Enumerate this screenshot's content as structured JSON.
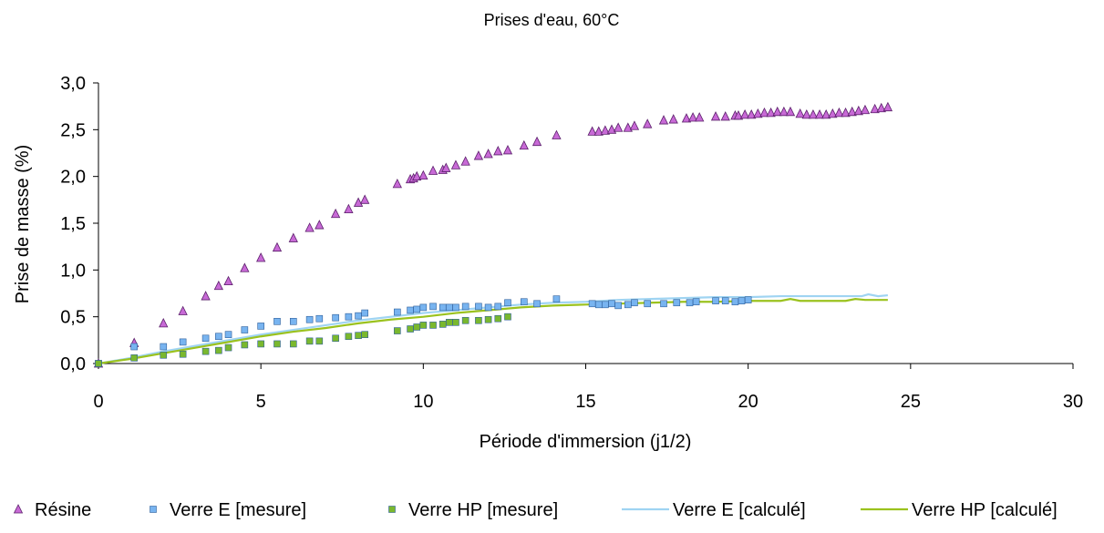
{
  "chart_data": {
    "type": "scatter",
    "title": "Prises d'eau, 60°C",
    "xlabel": "Période d'immersion (j1/2)",
    "ylabel": "Prise de masse (%)",
    "xlim": [
      0,
      30
    ],
    "ylim": [
      0,
      3.0
    ],
    "x_ticks": [
      0,
      5,
      10,
      15,
      20,
      25,
      30
    ],
    "x_tick_labels": [
      "0",
      "5",
      "10",
      "15",
      "20",
      "25",
      "30"
    ],
    "y_ticks": [
      0,
      0.5,
      1.0,
      1.5,
      2.0,
      2.5,
      3.0
    ],
    "y_tick_labels": [
      "0,0",
      "0,5",
      "1,0",
      "1,5",
      "2,0",
      "2,5",
      "3,0"
    ],
    "grid": false,
    "legend_position": "bottom",
    "series": [
      {
        "name": "Résine",
        "kind": "marker",
        "marker": "triangle",
        "color": "#c86ad6",
        "x": [
          0,
          1.1,
          2.0,
          2.6,
          3.3,
          3.7,
          4.0,
          4.5,
          5.0,
          5.5,
          6.0,
          6.5,
          6.8,
          7.3,
          7.7,
          8.0,
          8.2,
          9.2,
          9.6,
          9.7,
          9.8,
          10.0,
          10.3,
          10.6,
          10.7,
          11.0,
          11.3,
          11.7,
          12.0,
          12.3,
          12.6,
          13.1,
          13.5,
          14.1,
          15.2,
          15.4,
          15.6,
          15.8,
          16.0,
          16.3,
          16.5,
          16.9,
          17.4,
          17.7,
          18.1,
          18.3,
          18.5,
          19.0,
          19.3,
          19.6,
          19.7,
          19.9,
          20.1,
          20.3,
          20.5,
          20.7,
          20.9,
          21.1,
          21.3,
          21.6,
          21.8,
          22.0,
          22.2,
          22.4,
          22.6,
          22.8,
          23.0,
          23.2,
          23.4,
          23.6,
          23.9,
          24.1,
          24.3
        ],
        "y": [
          0,
          0.22,
          0.43,
          0.56,
          0.72,
          0.83,
          0.88,
          1.02,
          1.13,
          1.24,
          1.34,
          1.45,
          1.48,
          1.6,
          1.65,
          1.72,
          1.75,
          1.92,
          1.97,
          1.98,
          2.0,
          2.01,
          2.06,
          2.07,
          2.09,
          2.12,
          2.16,
          2.22,
          2.24,
          2.27,
          2.28,
          2.33,
          2.37,
          2.44,
          2.48,
          2.48,
          2.49,
          2.5,
          2.52,
          2.52,
          2.54,
          2.56,
          2.6,
          2.61,
          2.62,
          2.63,
          2.63,
          2.64,
          2.64,
          2.65,
          2.65,
          2.66,
          2.66,
          2.67,
          2.68,
          2.68,
          2.69,
          2.69,
          2.69,
          2.67,
          2.66,
          2.66,
          2.66,
          2.66,
          2.67,
          2.68,
          2.68,
          2.69,
          2.7,
          2.71,
          2.72,
          2.73,
          2.74
        ]
      },
      {
        "name": "Verre E [mesure]",
        "kind": "marker",
        "marker": "square",
        "color": "#78b4f0",
        "x": [
          0,
          1.1,
          2.0,
          2.6,
          3.3,
          3.7,
          4.0,
          4.5,
          5.0,
          5.5,
          6.0,
          6.5,
          6.8,
          7.3,
          7.7,
          8.0,
          8.2,
          9.2,
          9.6,
          9.8,
          10.0,
          10.3,
          10.6,
          10.8,
          11.0,
          11.3,
          11.7,
          12.0,
          12.3,
          12.6,
          13.1,
          13.5,
          14.1,
          15.2,
          15.4,
          15.6,
          15.8,
          16.0,
          16.3,
          16.5,
          16.9,
          17.4,
          17.8,
          18.2,
          18.4,
          19.0,
          19.3,
          19.6,
          19.8,
          20.0
        ],
        "y": [
          0,
          0.18,
          0.18,
          0.23,
          0.27,
          0.29,
          0.31,
          0.36,
          0.4,
          0.45,
          0.45,
          0.47,
          0.48,
          0.49,
          0.5,
          0.51,
          0.54,
          0.55,
          0.57,
          0.58,
          0.6,
          0.61,
          0.6,
          0.6,
          0.6,
          0.61,
          0.61,
          0.6,
          0.61,
          0.65,
          0.66,
          0.64,
          0.69,
          0.64,
          0.63,
          0.63,
          0.64,
          0.62,
          0.63,
          0.65,
          0.64,
          0.64,
          0.65,
          0.65,
          0.66,
          0.67,
          0.67,
          0.66,
          0.67,
          0.68
        ]
      },
      {
        "name": "Verre HP [mesure]",
        "kind": "marker",
        "marker": "square",
        "color": "#7ab82e",
        "x": [
          0,
          1.1,
          2.0,
          2.6,
          3.3,
          3.7,
          4.0,
          4.5,
          5.0,
          5.5,
          6.0,
          6.5,
          6.8,
          7.3,
          7.7,
          8.0,
          8.2,
          9.2,
          9.6,
          9.8,
          10.0,
          10.3,
          10.6,
          10.8,
          11.0,
          11.3,
          11.7,
          12.0,
          12.3,
          12.6
        ],
        "y": [
          0,
          0.06,
          0.09,
          0.1,
          0.13,
          0.14,
          0.17,
          0.2,
          0.21,
          0.21,
          0.21,
          0.24,
          0.24,
          0.27,
          0.29,
          0.3,
          0.31,
          0.35,
          0.37,
          0.39,
          0.41,
          0.41,
          0.42,
          0.44,
          0.44,
          0.46,
          0.46,
          0.47,
          0.48,
          0.5
        ]
      },
      {
        "name": "Verre E [calculé]",
        "kind": "line",
        "color": "#9fd4f2",
        "x": [
          0,
          1,
          2,
          3,
          4,
          5,
          6,
          7,
          8,
          9,
          10,
          11,
          12,
          13,
          14,
          15,
          16,
          17,
          18,
          19,
          20,
          21,
          22,
          23,
          23.5,
          23.7,
          24,
          24.3
        ],
        "y": [
          0,
          0.06,
          0.13,
          0.19,
          0.25,
          0.31,
          0.36,
          0.41,
          0.46,
          0.5,
          0.54,
          0.57,
          0.6,
          0.63,
          0.65,
          0.66,
          0.68,
          0.69,
          0.7,
          0.71,
          0.71,
          0.72,
          0.72,
          0.72,
          0.72,
          0.74,
          0.72,
          0.73
        ]
      },
      {
        "name": "Verre HP [calculé]",
        "kind": "line",
        "color": "#9bc21e",
        "x": [
          0,
          1,
          2,
          3,
          4,
          5,
          6,
          7,
          8,
          9,
          10,
          11,
          12,
          13,
          14,
          15,
          16,
          17,
          18,
          19,
          20,
          21,
          21.3,
          21.6,
          22,
          23,
          23.3,
          23.6,
          24,
          24.3
        ],
        "y": [
          0,
          0.05,
          0.11,
          0.17,
          0.23,
          0.29,
          0.34,
          0.38,
          0.43,
          0.47,
          0.5,
          0.54,
          0.57,
          0.6,
          0.62,
          0.63,
          0.64,
          0.65,
          0.66,
          0.66,
          0.67,
          0.67,
          0.69,
          0.67,
          0.67,
          0.67,
          0.69,
          0.68,
          0.68,
          0.68
        ]
      }
    ]
  }
}
